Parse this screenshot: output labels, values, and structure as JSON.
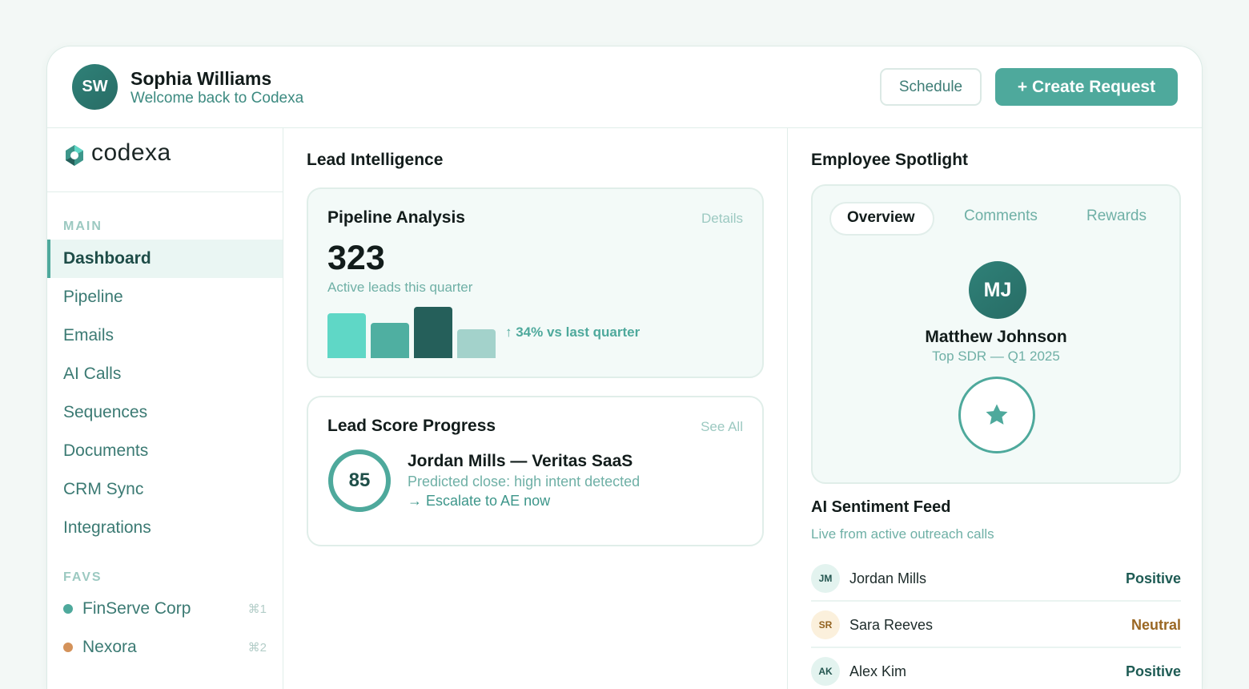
{
  "header": {
    "avatar_initials": "SW",
    "user_name": "Sophia Williams",
    "welcome": "Welcome back to Codexa",
    "schedule_label": "Schedule",
    "create_label": "+ Create Request"
  },
  "sidebar": {
    "brand": "codexa",
    "main_label": "MAIN",
    "items": [
      {
        "label": "Dashboard",
        "active": true
      },
      {
        "label": "Pipeline"
      },
      {
        "label": "Emails"
      },
      {
        "label": "AI Calls"
      },
      {
        "label": "Sequences"
      },
      {
        "label": "Documents"
      },
      {
        "label": "CRM Sync"
      },
      {
        "label": "Integrations"
      }
    ],
    "favs_label": "FAVS",
    "favs": [
      {
        "label": "FinServe Corp",
        "shortcut": "⌘1",
        "color": "#4ea99c"
      },
      {
        "label": "Nexora",
        "shortcut": "⌘2",
        "color": "#d4925a"
      }
    ]
  },
  "lead_intelligence": {
    "title": "Lead Intelligence",
    "pipeline": {
      "title": "Pipeline Analysis",
      "details_label": "Details",
      "value": "323",
      "caption": "Active leads this quarter",
      "trend": "↑ 34% vs last quarter",
      "bar_levels": [
        0.88,
        0.69,
        1.0,
        0.56
      ],
      "bar_colors": [
        "#5fd7c6",
        "#4fafa1",
        "#255f5a",
        "#a3d2cb"
      ]
    },
    "lead_score": {
      "title": "Lead Score Progress",
      "see_all_label": "See All",
      "score": "85",
      "lead_name": "Jordan Mills — Veritas SaaS",
      "prediction": "Predicted close: high intent detected",
      "action": "→ Escalate to AE now"
    }
  },
  "spotlight": {
    "title": "Employee Spotlight",
    "tabs": [
      "Overview",
      "Comments",
      "Rewards"
    ],
    "active_tab": "Overview",
    "avatar_initials": "MJ",
    "name": "Matthew Johnson",
    "role": "Top SDR — Q1 2025",
    "badge_icon": "star-icon"
  },
  "sentiment": {
    "title": "AI Sentiment Feed",
    "subtitle": "Live from active outreach calls",
    "rows": [
      {
        "initials": "JM",
        "name": "Jordan Mills",
        "status": "Positive",
        "status_color": "#1e5b54",
        "avatar_bg": "#e3f3ef",
        "avatar_fg": "#23554f"
      },
      {
        "initials": "SR",
        "name": "Sara Reeves",
        "status": "Neutral",
        "status_color": "#9a6723",
        "avatar_bg": "#fbf0dc",
        "avatar_fg": "#92621f"
      },
      {
        "initials": "AK",
        "name": "Alex Kim",
        "status": "Positive",
        "status_color": "#1e5b54",
        "avatar_bg": "#e3f3ef",
        "avatar_fg": "#23554f"
      }
    ]
  }
}
